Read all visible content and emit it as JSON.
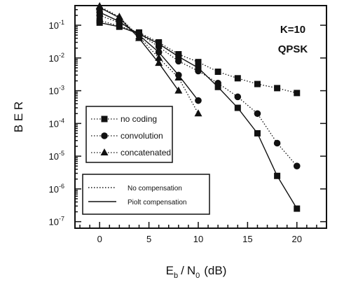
{
  "chart_data": {
    "type": "line",
    "xlabel": "E_b / N_0 (dB)",
    "xlabel_parts": {
      "E": "E",
      "b": "b",
      "slash": "/",
      "N": "N",
      "zero": "0",
      "unit": "(dB)"
    },
    "ylabel": "B E R",
    "xlim": [
      -2.5,
      23
    ],
    "ylim_log10": [
      -7.2,
      -0.4
    ],
    "y_scale": "log",
    "x_ticks": [
      0,
      5,
      10,
      15,
      20
    ],
    "x_tick_labels": [
      "0",
      "5",
      "10",
      "15",
      "20"
    ],
    "y_ticks_exp": [
      -1,
      -2,
      -3,
      -4,
      -5,
      -6,
      -7
    ],
    "y_tick_base": "10",
    "annotations": [
      "K=10",
      "QPSK"
    ],
    "series": [
      {
        "name": "no coding",
        "marker": "square",
        "compensation": "no",
        "x": [
          0,
          2,
          4,
          6,
          8,
          10,
          12,
          14,
          16,
          18,
          20
        ],
        "y": [
          0.14,
          0.095,
          0.06,
          0.03,
          0.013,
          0.0075,
          0.0038,
          0.0024,
          0.0016,
          0.0012,
          0.00085
        ]
      },
      {
        "name": "no coding",
        "marker": "square",
        "compensation": "pilot",
        "x": [
          0,
          2,
          4,
          6,
          8,
          10,
          12,
          14,
          16,
          18,
          20
        ],
        "y": [
          0.12,
          0.09,
          0.055,
          0.027,
          0.011,
          0.005,
          0.0013,
          0.0003,
          5e-05,
          2.5e-06,
          2.5e-07
        ]
      },
      {
        "name": "convolution",
        "marker": "circle",
        "compensation": "no",
        "x": [
          0,
          2,
          4,
          6,
          8,
          10,
          12,
          14,
          16,
          18,
          20
        ],
        "y": [
          0.2,
          0.12,
          0.055,
          0.022,
          0.008,
          0.004,
          0.0017,
          0.00065,
          0.0002,
          2.5e-05,
          5e-06
        ]
      },
      {
        "name": "convolution",
        "marker": "circle",
        "compensation": "pilot",
        "x": [
          0,
          2,
          4,
          6,
          8,
          10
        ],
        "y": [
          0.25,
          0.13,
          0.05,
          0.015,
          0.003,
          0.0005
        ]
      },
      {
        "name": "concatenated",
        "marker": "triangle",
        "compensation": "no",
        "x": [
          0,
          2,
          4,
          6,
          8,
          10
        ],
        "y": [
          0.38,
          0.18,
          0.045,
          0.01,
          0.0025,
          0.0002
        ]
      },
      {
        "name": "concatenated",
        "marker": "triangle",
        "compensation": "pilot",
        "x": [
          0,
          2,
          4,
          6,
          8
        ],
        "y": [
          0.35,
          0.17,
          0.04,
          0.007,
          0.001
        ]
      }
    ],
    "legend_markers": [
      {
        "label": "no coding",
        "marker": "square"
      },
      {
        "label": "convolution",
        "marker": "circle"
      },
      {
        "label": "concatenated",
        "marker": "triangle"
      }
    ],
    "legend_lines": [
      {
        "label": "No compensation",
        "style": "dotted"
      },
      {
        "label": "Piolt compensation",
        "style": "solid"
      }
    ]
  }
}
